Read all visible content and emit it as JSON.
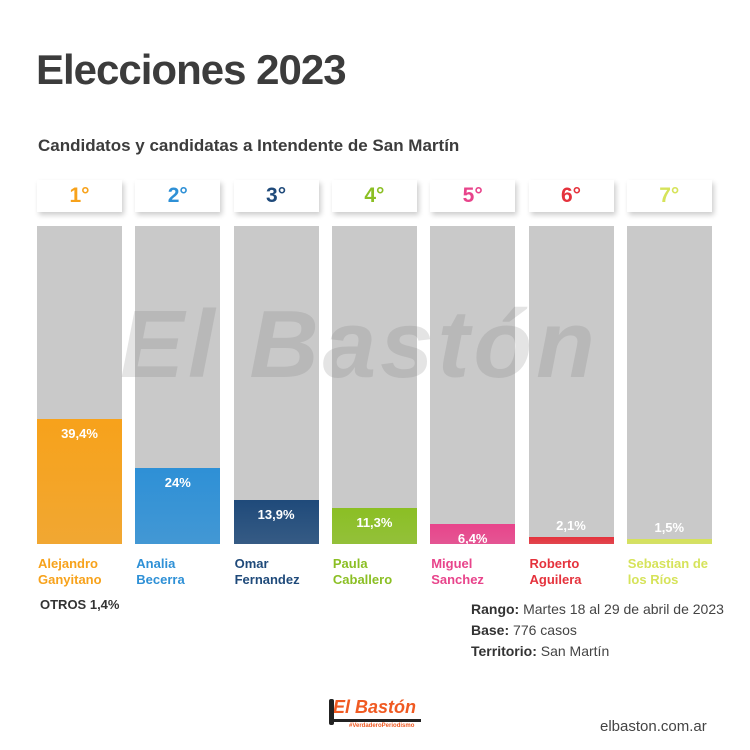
{
  "title": "Elecciones 2023",
  "subtitle": "Candidatos y candidatas a Intendente de San Martín",
  "chart_data": {
    "type": "bar",
    "ylim": [
      0,
      100
    ],
    "categories": [
      "Alejandro Ganyitano",
      "Analia Becerra",
      "Omar Fernandez",
      "Paula Caballero",
      "Miguel Sanchez",
      "Roberto Aguilera",
      "Sebastian de los Ríos"
    ],
    "name_lines": [
      [
        "Alejandro",
        "Ganyitano"
      ],
      [
        "Analia",
        "Becerra"
      ],
      [
        "Omar",
        "Fernandez"
      ],
      [
        "Paula",
        "Caballero"
      ],
      [
        "Miguel",
        "Sanchez"
      ],
      [
        "Roberto",
        "Aguilera"
      ],
      [
        "Sebastian de",
        "los Ríos"
      ]
    ],
    "ranks": [
      "1°",
      "2°",
      "3°",
      "4°",
      "5°",
      "6°",
      "7°"
    ],
    "values": [
      39.4,
      24,
      13.9,
      11.3,
      6.4,
      2.1,
      1.5
    ],
    "labels": [
      "39,4%",
      "24%",
      "13,9%",
      "11,3%",
      "6,4%",
      "2,1%",
      "1,5%"
    ],
    "colors": [
      "#f7a21b",
      "#2e90d6",
      "#1f4a7a",
      "#8bbf24",
      "#e8448b",
      "#e5323c",
      "#d6e35a"
    ]
  },
  "otros": "OTROS  1,4%",
  "info": [
    {
      "label": "Rango:",
      "value": "Martes 18 al 29 de abril de 2023"
    },
    {
      "label": "Base:",
      "value": "776 casos"
    },
    {
      "label": "Territorio:",
      "value": "San Martín"
    }
  ],
  "logo": {
    "text": "El Bastón",
    "tagline": "#VerdaderoPeriodismo"
  },
  "watermark": "El Bastón",
  "site": "elbaston.com.ar"
}
